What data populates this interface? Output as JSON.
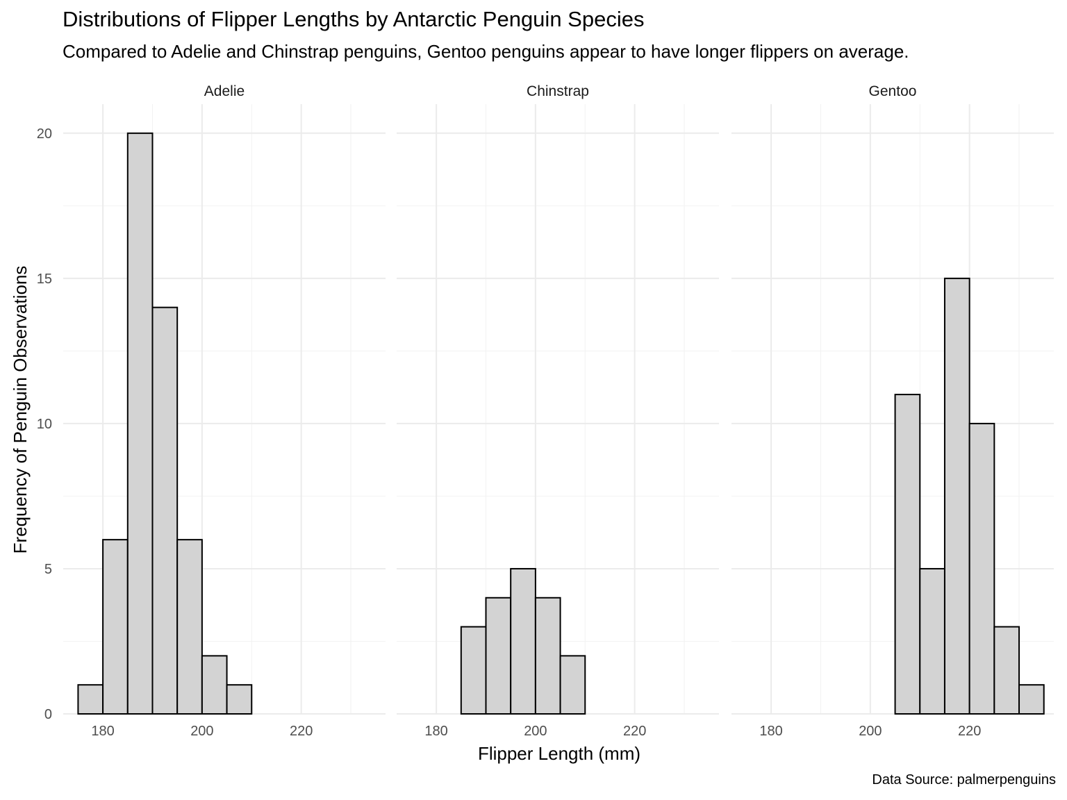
{
  "chart_data": {
    "type": "bar",
    "title": "Distributions of Flipper Lengths by Antarctic Penguin Species",
    "subtitle": "Compared to Adelie and Chinstrap penguins, Gentoo penguins appear to have longer flippers on average.",
    "caption": "Data Source: palmerpenguins",
    "xlabel": "Flipper Length (mm)",
    "ylabel": "Frequency of Penguin Observations",
    "xlim": [
      172,
      237
    ],
    "ylim": [
      0,
      21
    ],
    "x_ticks": [
      180,
      200,
      220
    ],
    "y_ticks": [
      0,
      5,
      10,
      15,
      20
    ],
    "bin_width": 5,
    "bin_starts": [
      175,
      180,
      185,
      190,
      195,
      200,
      205,
      210,
      215,
      220,
      225,
      230
    ],
    "grid": true,
    "legend": "none",
    "colors": {
      "bar_fill": "#d3d3d3",
      "bar_outline": "#000000",
      "grid": "#ebebeb"
    },
    "panels": [
      {
        "name": "Adelie",
        "values": [
          1,
          6,
          20,
          14,
          6,
          2,
          1,
          0,
          0,
          0,
          0,
          0
        ]
      },
      {
        "name": "Chinstrap",
        "values": [
          0,
          0,
          3,
          4,
          5,
          4,
          2,
          0,
          0,
          0,
          0,
          0
        ]
      },
      {
        "name": "Gentoo",
        "values": [
          0,
          0,
          0,
          0,
          0,
          0,
          11,
          5,
          15,
          10,
          3,
          1
        ]
      }
    ]
  }
}
